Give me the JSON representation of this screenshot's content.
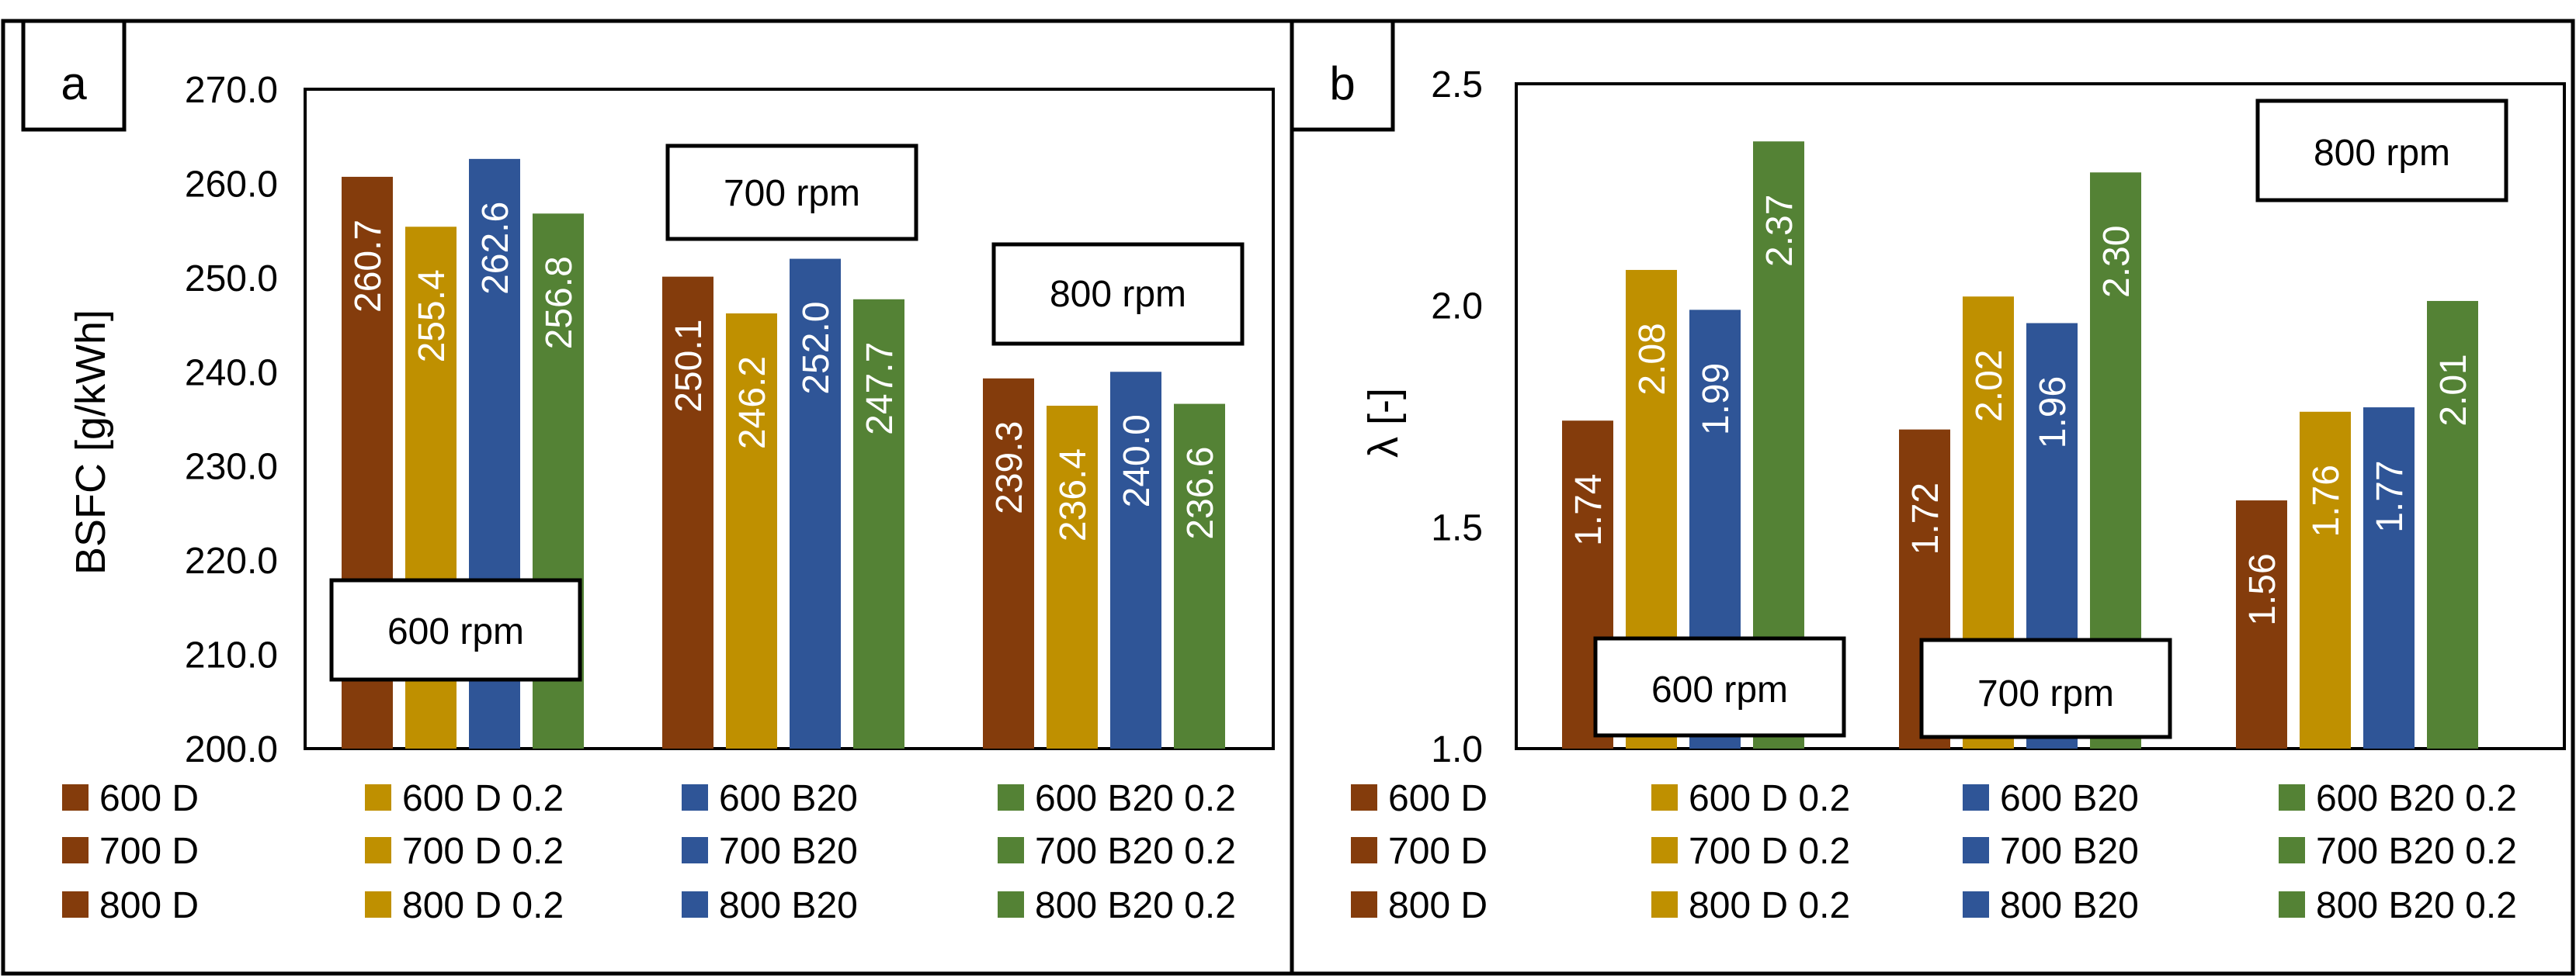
{
  "colors": {
    "D": "#843c0c",
    "D02": "#bf9000",
    "B20": "#2f5597",
    "B2002": "#548235",
    "frame": "#000000",
    "background": "#ffffff"
  },
  "chart_data": [
    {
      "panel_label": "a",
      "type": "bar",
      "ylabel": "BSFC [g/kWh]",
      "xlabel": "",
      "ylim": [
        200,
        270
      ],
      "ytick_values": [
        200,
        210,
        220,
        230,
        240,
        250,
        260,
        270
      ],
      "ytick_labels": [
        "200.0",
        "210.0",
        "220.0",
        "230.0",
        "240.0",
        "250.0",
        "260.0",
        "270.0"
      ],
      "grid": false,
      "groups": [
        {
          "annotation": "600 rpm",
          "annotation_place": "bottom-left",
          "values": [
            260.7,
            255.4,
            262.6,
            256.8
          ],
          "labels": [
            "260.7",
            "255.4",
            "262.6",
            "256.8"
          ]
        },
        {
          "annotation": "700 rpm",
          "annotation_place": "above-group",
          "values": [
            250.1,
            246.2,
            252.0,
            247.7
          ],
          "labels": [
            "250.1",
            "246.2",
            "252.0",
            "247.7"
          ]
        },
        {
          "annotation": "800 rpm",
          "annotation_place": "above-group",
          "values": [
            239.3,
            236.4,
            240.0,
            236.6
          ],
          "labels": [
            "239.3",
            "236.4",
            "240.0",
            "236.6"
          ]
        }
      ],
      "legend": [
        [
          "600 D",
          "600 D 0.2",
          "600 B20",
          "600 B20 0.2"
        ],
        [
          "700 D",
          "700 D 0.2",
          "700 B20",
          "700 B20 0.2"
        ],
        [
          "800 D",
          "800 D 0.2",
          "800 B20",
          "800 B20 0.2"
        ]
      ],
      "legend_placement": "bottom"
    },
    {
      "panel_label": "b",
      "type": "bar",
      "ylabel": "λ [-]",
      "xlabel": "",
      "ylim": [
        1.0,
        2.5
      ],
      "ytick_values": [
        1.0,
        1.5,
        2.0,
        2.5
      ],
      "ytick_labels": [
        "1.0",
        "1.5",
        "2.0",
        "2.5"
      ],
      "grid": false,
      "groups": [
        {
          "annotation": "600 rpm",
          "annotation_place": "bottom",
          "values": [
            1.74,
            2.08,
            1.99,
            2.37
          ],
          "labels": [
            "1.74",
            "2.08",
            "1.99",
            "2.37"
          ]
        },
        {
          "annotation": "700 rpm",
          "annotation_place": "bottom",
          "values": [
            1.72,
            2.02,
            1.96,
            2.3
          ],
          "labels": [
            "1.72",
            "2.02",
            "1.96",
            "2.30"
          ]
        },
        {
          "annotation": "800 rpm",
          "annotation_place": "top-right",
          "values": [
            1.56,
            1.76,
            1.77,
            2.01
          ],
          "labels": [
            "1.56",
            "1.76",
            "1.77",
            "2.01"
          ]
        }
      ],
      "legend": [
        [
          "600 D",
          "600 D 0.2",
          "600 B20",
          "600 B20 0.2"
        ],
        [
          "700 D",
          "700 D 0.2",
          "700 B20",
          "700 B20 0.2"
        ],
        [
          "800 D",
          "800 D 0.2",
          "800 B20",
          "800 B20 0.2"
        ]
      ],
      "legend_placement": "bottom"
    }
  ]
}
